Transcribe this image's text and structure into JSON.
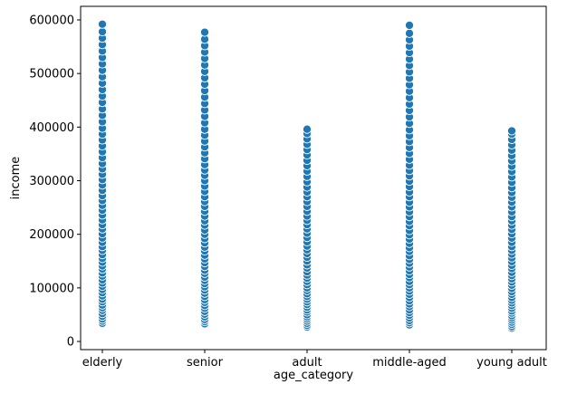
{
  "chart_data": {
    "type": "scatter",
    "xlabel": "age_category",
    "ylabel": "income",
    "categories": [
      "elderly",
      "senior",
      "adult",
      "middle-aged",
      "young adult"
    ],
    "ylim": [
      0,
      620000
    ],
    "yticks": [
      0,
      100000,
      200000,
      300000,
      400000,
      500000,
      600000
    ],
    "ytick_labels": [
      "0",
      "100000",
      "200000",
      "300000",
      "400000",
      "500000",
      "600000"
    ],
    "grid": false,
    "legend": "none",
    "marker_color": "#1f77b4",
    "marker_edge_color": "#ffffff",
    "series": [
      {
        "category": "elderly",
        "values": [
          34000,
          38000,
          42000,
          47000,
          52000,
          58000,
          63000,
          68000,
          74000,
          79000,
          85000,
          91000,
          97000,
          103000,
          109000,
          115000,
          122000,
          128000,
          135000,
          141000,
          148000,
          155000,
          162000,
          170000,
          177000,
          185000,
          193000,
          201000,
          210000,
          218000,
          227000,
          236000,
          245000,
          254000,
          263000,
          272000,
          282000,
          292000,
          302000,
          312000,
          322000,
          332000,
          343000,
          354000,
          365000,
          376000,
          387000,
          398000,
          410000,
          422000,
          434000,
          446000,
          458000,
          470000,
          482000,
          494000,
          506000,
          518000,
          530000,
          542000,
          554000,
          566000,
          578000,
          592000
        ]
      },
      {
        "category": "senior",
        "values": [
          33000,
          37000,
          41000,
          46000,
          51000,
          56000,
          62000,
          67000,
          73000,
          78000,
          84000,
          90000,
          96000,
          102000,
          108000,
          114000,
          120000,
          127000,
          133000,
          140000,
          147000,
          154000,
          161000,
          169000,
          176000,
          184000,
          192000,
          200000,
          208000,
          217000,
          225000,
          234000,
          243000,
          252000,
          261000,
          270000,
          280000,
          290000,
          300000,
          310000,
          320000,
          330000,
          341000,
          352000,
          363000,
          374000,
          385000,
          396000,
          408000,
          420000,
          432000,
          444000,
          456000,
          468000,
          480000,
          492000,
          504000,
          516000,
          528000,
          540000,
          552000,
          564000,
          577000
        ]
      },
      {
        "category": "adult",
        "values": [
          27000,
          30000,
          34000,
          38000,
          42000,
          46000,
          50000,
          55000,
          59000,
          64000,
          69000,
          74000,
          79000,
          84000,
          89000,
          95000,
          100000,
          106000,
          112000,
          118000,
          124000,
          130000,
          137000,
          143000,
          150000,
          157000,
          164000,
          171000,
          178000,
          186000,
          194000,
          202000,
          210000,
          218000,
          226000,
          234000,
          243000,
          252000,
          261000,
          270000,
          279000,
          288000,
          298000,
          308000,
          318000,
          328000,
          338000,
          348000,
          358000,
          368000,
          378000,
          388000,
          396000
        ]
      },
      {
        "category": "middle-aged",
        "values": [
          31000,
          35000,
          39000,
          44000,
          49000,
          54000,
          59000,
          65000,
          70000,
          76000,
          82000,
          88000,
          94000,
          100000,
          106000,
          112000,
          119000,
          125000,
          132000,
          139000,
          146000,
          153000,
          160000,
          168000,
          175000,
          183000,
          191000,
          199000,
          207000,
          216000,
          224000,
          233000,
          242000,
          251000,
          260000,
          270000,
          279000,
          289000,
          299000,
          309000,
          319000,
          329000,
          340000,
          351000,
          362000,
          373000,
          384000,
          395000,
          407000,
          419000,
          431000,
          443000,
          455000,
          467000,
          479000,
          491000,
          503000,
          515000,
          527000,
          539000,
          551000,
          563000,
          575000,
          590000
        ]
      },
      {
        "category": "young adult",
        "values": [
          25000,
          28000,
          32000,
          36000,
          40000,
          44000,
          48000,
          53000,
          57000,
          62000,
          67000,
          72000,
          77000,
          82000,
          88000,
          93000,
          99000,
          105000,
          111000,
          117000,
          123000,
          129000,
          136000,
          142000,
          149000,
          156000,
          163000,
          170000,
          177000,
          185000,
          193000,
          201000,
          209000,
          217000,
          225000,
          233000,
          242000,
          251000,
          260000,
          269000,
          278000,
          287000,
          297000,
          307000,
          317000,
          327000,
          337000,
          347000,
          357000,
          367000,
          377000,
          387000,
          393000
        ]
      }
    ]
  }
}
